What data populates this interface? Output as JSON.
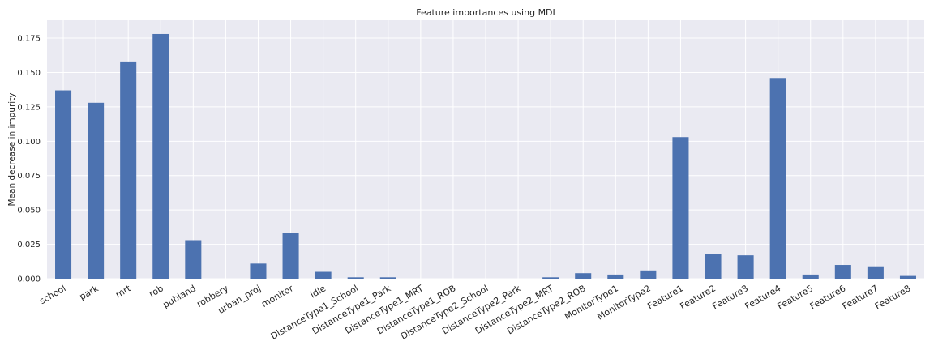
{
  "chart_data": {
    "type": "bar",
    "title": "Feature importances using MDI",
    "xlabel": "",
    "ylabel": "Mean decrease in impurity",
    "ylim": [
      0,
      0.188
    ],
    "yticks": [
      "0.000",
      "0.025",
      "0.050",
      "0.075",
      "0.100",
      "0.125",
      "0.150",
      "0.175"
    ],
    "grid": true,
    "bar_color": "#4c72b0",
    "background_color": "#eaeaf2",
    "categories": [
      "school",
      "park",
      "mrt",
      "rob",
      "publand",
      "robbery",
      "urban_proj",
      "monitor",
      "idle",
      "DistanceType1_School",
      "DistanceType1_Park",
      "DistanceType1_MRT",
      "DistanceType1_ROB",
      "DistanceType2_School",
      "DistanceType2_Park",
      "DistanceType2_MRT",
      "DistanceType2_ROB",
      "MonitorType1",
      "MonitorType2",
      "Feature1",
      "Feature2",
      "Feature3",
      "Feature4",
      "Feature5",
      "Feature6",
      "Feature7",
      "Feature8"
    ],
    "values": [
      0.137,
      0.128,
      0.158,
      0.178,
      0.028,
      0.0,
      0.011,
      0.033,
      0.005,
      0.001,
      0.001,
      0.0,
      0.0,
      0.0,
      0.0,
      0.001,
      0.004,
      0.003,
      0.006,
      0.103,
      0.018,
      0.017,
      0.146,
      0.003,
      0.01,
      0.009,
      0.002
    ]
  }
}
